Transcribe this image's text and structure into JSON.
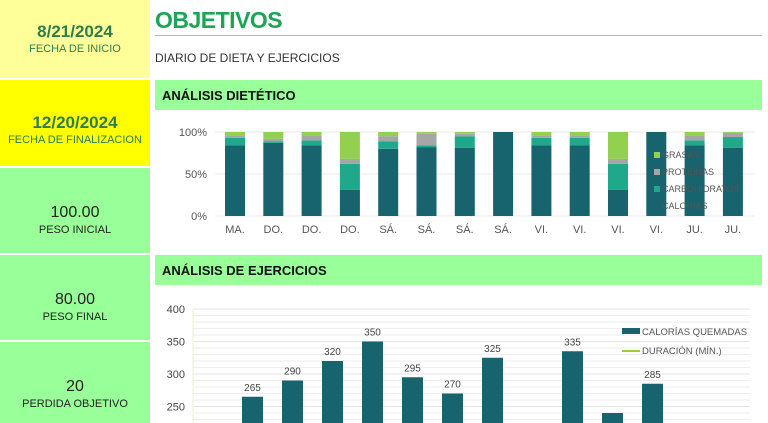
{
  "sidebar": {
    "start": {
      "value": "8/21/2024",
      "label": "FECHA DE INICIO",
      "bg": "#ffff99"
    },
    "end": {
      "value": "12/20/2024",
      "label": "FECHA DE FINALIZACION",
      "bg": "#ffff00"
    },
    "initial_weight": {
      "value": "100.00",
      "label": "PESO INICIAL",
      "bg": "#99ff99"
    },
    "final_weight": {
      "value": "80.00",
      "label": "PESO FINAL",
      "bg": "#99ff99"
    },
    "goal_loss": {
      "value": "20",
      "label": "PERDIDA OBJETIVO",
      "bg": "#99ff99"
    }
  },
  "header": {
    "title": "OBJETIVOS",
    "subtitle": "DIARIO DE DIETA Y EJERCICIOS"
  },
  "sections": {
    "diet": "ANÁLISIS DIETÉTICO",
    "exercise": "ANÁLISIS DE EJERCICIOS"
  },
  "colors": {
    "calorias": "#17636e",
    "carbohidratos": "#1fa98a",
    "proteinas": "#a6a6a6",
    "grasas": "#92d050",
    "duracion": "#9acd32",
    "accent_title": "#1aa655"
  },
  "chart_data": [
    {
      "type": "bar",
      "stacked": "percent",
      "title": "ANÁLISIS DIETÉTICO",
      "categories": [
        "MA.",
        "DO.",
        "DO.",
        "DO.",
        "SÁ.",
        "SÁ.",
        "SÁ.",
        "SÁ.",
        "VI.",
        "VI.",
        "VI.",
        "VI.",
        "JU.",
        "JU."
      ],
      "series": [
        {
          "name": "CALORÍAS",
          "values": [
            84,
            87,
            84,
            31,
            80,
            82,
            81,
            100,
            84,
            84,
            31,
            100,
            84,
            81
          ]
        },
        {
          "name": "CARBOHIDRATOS",
          "values": [
            9,
            2,
            6,
            31,
            9,
            2,
            14,
            0,
            9,
            9,
            31,
            0,
            6,
            13
          ]
        },
        {
          "name": "PROTEÍNAS",
          "values": [
            3,
            3,
            6,
            6,
            6,
            14,
            3,
            0,
            3,
            3,
            6,
            0,
            6,
            5
          ]
        },
        {
          "name": "GRASAS",
          "values": [
            4,
            8,
            4,
            32,
            5,
            2,
            2,
            0,
            4,
            4,
            32,
            0,
            4,
            1
          ]
        }
      ],
      "yticks": [
        "0%",
        "50%",
        "100%"
      ],
      "ylim": [
        0,
        100
      ],
      "grid": true,
      "legend_position": "right-inside",
      "legend": [
        "GRASAS",
        "PROTEÍNAS",
        "CARBOHIDRATOS",
        "CALORÍAS"
      ]
    },
    {
      "type": "bar",
      "title": "ANÁLISIS DE EJERCICIOS",
      "series": [
        {
          "name": "CALORÍAS QUEMADAS",
          "values": [
            265,
            290,
            320,
            350,
            295,
            270,
            325,
            null,
            335,
            240,
            285
          ]
        },
        {
          "name": "DURACIÓN (MÍN.)",
          "type": "line",
          "values": []
        }
      ],
      "data_labels": [
        "265",
        "290",
        "320",
        "350",
        "295",
        "270",
        "325",
        "",
        "335",
        "",
        "285"
      ],
      "yticks": [
        "250",
        "300",
        "350",
        "400"
      ],
      "ylim": [
        200,
        400
      ],
      "grid": true,
      "legend_position": "right-inside",
      "legend": [
        "CALORÍAS QUEMADAS",
        "DURACIÓN (MÍN.)"
      ]
    }
  ]
}
